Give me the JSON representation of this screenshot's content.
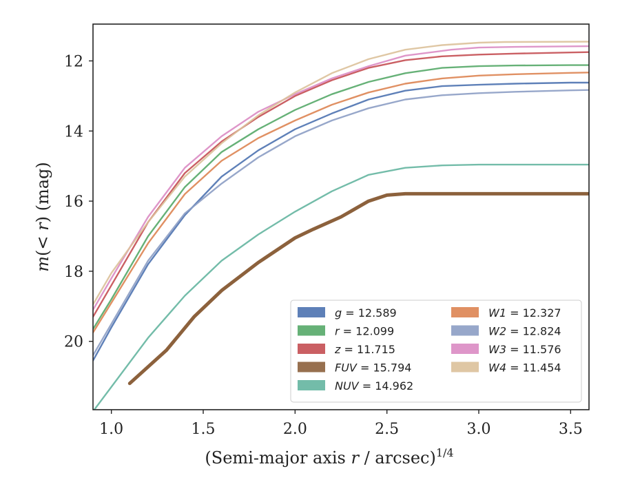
{
  "chart_data": {
    "type": "line",
    "xlabel": "(Semi-major axis r / arcsec)1/4",
    "xlabel_parts": {
      "main": "(Semi-major axis ",
      "var": "r",
      "tail": " / arcsec)",
      "sup": "1/4"
    },
    "ylabel": "m(< r) (mag)",
    "ylabel_parts": {
      "main": "m",
      "open": "(",
      "lt": "< ",
      "var": "r",
      "close": ")",
      "unit": " (mag)"
    },
    "xlim": [
      0.9,
      3.6
    ],
    "ylim": [
      21.95,
      10.95
    ],
    "y_inverted": true,
    "xticks": [
      1.0,
      1.5,
      2.0,
      2.5,
      3.0,
      3.5
    ],
    "xtick_labels": [
      "1.0",
      "1.5",
      "2.0",
      "2.5",
      "3.0",
      "3.5"
    ],
    "yticks": [
      12,
      14,
      16,
      18,
      20
    ],
    "ytick_labels": [
      "12",
      "14",
      "16",
      "18",
      "20"
    ],
    "grid": false,
    "legend_position": "lower-right",
    "series": [
      {
        "name": "g = 12.589",
        "label_var": "g",
        "label_value": "12.589",
        "color": "#4c72b0",
        "x": [
          0.9,
          1.0,
          1.2,
          1.4,
          1.6,
          1.8,
          2.0,
          2.2,
          2.4,
          2.6,
          2.8,
          3.0,
          3.2,
          3.5,
          3.6
        ],
        "y": [
          20.55,
          19.6,
          17.8,
          16.4,
          15.3,
          14.55,
          13.95,
          13.5,
          13.1,
          12.85,
          12.72,
          12.68,
          12.65,
          12.62,
          12.62
        ]
      },
      {
        "name": "r = 12.099",
        "label_var": "r",
        "label_value": "12.099",
        "color": "#55a868",
        "x": [
          0.9,
          1.0,
          1.2,
          1.4,
          1.6,
          1.8,
          2.0,
          2.2,
          2.4,
          2.6,
          2.8,
          3.0,
          3.2,
          3.5,
          3.6
        ],
        "y": [
          19.65,
          18.8,
          17.0,
          15.6,
          14.6,
          13.95,
          13.4,
          12.95,
          12.6,
          12.35,
          12.2,
          12.15,
          12.13,
          12.12,
          12.12
        ]
      },
      {
        "name": "z = 11.715",
        "label_var": "z",
        "label_value": "11.715",
        "color": "#c44e52",
        "x": [
          0.9,
          1.0,
          1.2,
          1.4,
          1.6,
          1.8,
          2.0,
          2.2,
          2.4,
          2.6,
          2.8,
          3.0,
          3.2,
          3.5,
          3.6
        ],
        "y": [
          19.3,
          18.4,
          16.6,
          15.2,
          14.3,
          13.6,
          13.0,
          12.55,
          12.2,
          11.98,
          11.87,
          11.82,
          11.79,
          11.76,
          11.75
        ]
      },
      {
        "name": "FUV = 15.794",
        "label_var": "FUV",
        "label_value": "15.794",
        "color": "#8c613c",
        "x": [
          1.1,
          1.3,
          1.45,
          1.6,
          1.8,
          2.0,
          2.1,
          2.25,
          2.4,
          2.5,
          2.6,
          3.0,
          3.6
        ],
        "y": [
          21.2,
          20.25,
          19.3,
          18.55,
          17.75,
          17.05,
          16.8,
          16.45,
          16.0,
          15.83,
          15.79,
          15.79,
          15.79
        ]
      },
      {
        "name": "NUV = 14.962",
        "label_var": "NUV",
        "label_value": "14.962",
        "color": "#64b5a0",
        "x": [
          0.9,
          1.0,
          1.2,
          1.4,
          1.6,
          1.8,
          2.0,
          2.2,
          2.4,
          2.6,
          2.8,
          3.0,
          3.6
        ],
        "y": [
          22.0,
          21.3,
          19.9,
          18.7,
          17.7,
          16.95,
          16.3,
          15.72,
          15.25,
          15.05,
          14.98,
          14.96,
          14.96
        ]
      },
      {
        "name": "W1 = 12.327",
        "label_var": "W1",
        "label_value": "12.327",
        "color": "#dd8452",
        "x": [
          0.9,
          1.0,
          1.2,
          1.4,
          1.6,
          1.8,
          2.0,
          2.2,
          2.4,
          2.6,
          2.8,
          3.0,
          3.2,
          3.5,
          3.6
        ],
        "y": [
          19.75,
          18.9,
          17.2,
          15.8,
          14.85,
          14.2,
          13.7,
          13.25,
          12.9,
          12.65,
          12.5,
          12.42,
          12.38,
          12.34,
          12.33
        ]
      },
      {
        "name": "W2 = 12.824",
        "label_var": "W2",
        "label_value": "12.824",
        "color": "#8c9dc4",
        "x": [
          0.9,
          1.0,
          1.2,
          1.4,
          1.6,
          1.8,
          2.0,
          2.2,
          2.4,
          2.6,
          2.8,
          3.0,
          3.2,
          3.5,
          3.6
        ],
        "y": [
          20.4,
          19.5,
          17.7,
          16.35,
          15.5,
          14.75,
          14.15,
          13.7,
          13.35,
          13.1,
          12.98,
          12.92,
          12.88,
          12.84,
          12.83
        ]
      },
      {
        "name": "W3 = 11.576",
        "label_var": "W3",
        "label_value": "11.576",
        "color": "#da8bc3",
        "x": [
          0.9,
          1.0,
          1.2,
          1.4,
          1.6,
          1.8,
          2.0,
          2.2,
          2.4,
          2.6,
          2.85,
          3.0,
          3.2,
          3.6
        ],
        "y": [
          19.1,
          18.2,
          16.45,
          15.05,
          14.15,
          13.45,
          12.95,
          12.5,
          12.15,
          11.85,
          11.68,
          11.62,
          11.6,
          11.58
        ]
      },
      {
        "name": "W4 = 11.454",
        "label_var": "W4",
        "label_value": "11.454",
        "color": "#dcc19a",
        "x": [
          0.9,
          1.0,
          1.2,
          1.4,
          1.6,
          1.8,
          2.0,
          2.2,
          2.4,
          2.6,
          2.8,
          3.0,
          3.14,
          3.6
        ],
        "y": [
          18.95,
          18.05,
          16.6,
          15.3,
          14.35,
          13.55,
          12.9,
          12.35,
          11.95,
          11.68,
          11.55,
          11.48,
          11.46,
          11.45
        ]
      }
    ]
  }
}
